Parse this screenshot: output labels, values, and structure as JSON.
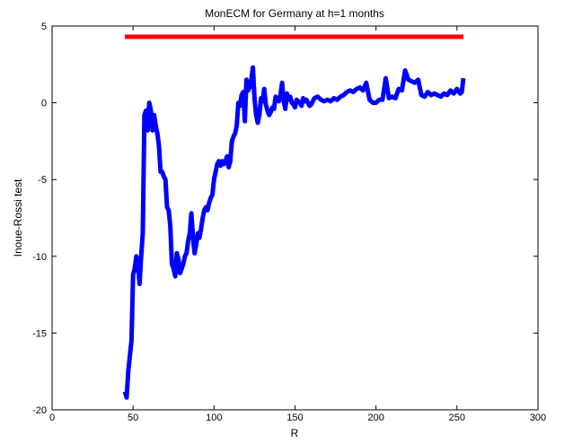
{
  "chart_data": {
    "type": "line",
    "title": "MonECM for Germany at h=1 months",
    "xlabel": "R",
    "ylabel": "Inoue-Rossi test",
    "xlim": [
      0,
      300
    ],
    "ylim": [
      -20,
      5
    ],
    "xticks": [
      0,
      50,
      100,
      150,
      200,
      250,
      300
    ],
    "yticks": [
      -20,
      -15,
      -10,
      -5,
      0,
      5
    ],
    "xtick_labels": [
      "0",
      "50",
      "100",
      "150",
      "200",
      "250",
      "300"
    ],
    "ytick_labels": [
      "-20",
      "-15",
      "-10",
      "-5",
      "0",
      "5"
    ],
    "grid": false,
    "legend": "none",
    "series": [
      {
        "color": "#0000ff",
        "x": [
          45,
          46,
          47,
          48,
          49,
          50,
          51,
          52,
          53,
          54,
          55,
          56,
          57,
          58,
          59,
          60,
          61,
          62,
          63,
          64,
          65,
          66,
          67,
          68,
          69,
          70,
          71,
          72,
          73,
          74,
          75,
          76,
          77,
          78,
          79,
          80,
          81,
          82,
          83,
          84,
          85,
          86,
          87,
          88,
          89,
          90,
          91,
          92,
          93,
          94,
          95,
          96,
          97,
          98,
          99,
          100,
          101,
          102,
          103,
          104,
          105,
          106,
          107,
          108,
          109,
          110,
          111,
          112,
          113,
          114,
          115,
          116,
          117,
          118,
          119,
          120,
          121,
          122,
          123,
          124,
          125,
          126,
          127,
          128,
          129,
          130,
          131,
          132,
          133,
          134,
          135,
          136,
          137,
          138,
          139,
          140,
          141,
          142,
          143,
          144,
          145,
          146,
          147,
          148,
          149,
          150,
          151,
          152,
          153,
          154,
          155,
          156,
          157,
          158,
          159,
          160,
          162,
          164,
          166,
          168,
          170,
          172,
          174,
          176,
          178,
          180,
          182,
          184,
          186,
          188,
          190,
          192,
          194,
          196,
          198,
          200,
          202,
          204,
          206,
          208,
          210,
          212,
          214,
          216,
          218,
          220,
          222,
          224,
          226,
          228,
          230,
          232,
          234,
          236,
          238,
          240,
          242,
          244,
          246,
          248,
          250,
          252,
          253,
          254
        ],
        "y": [
          -18.8,
          -19.2,
          -17.5,
          -16.5,
          -15.5,
          -11.2,
          -10.8,
          -10.0,
          -10.5,
          -11.8,
          -10.0,
          -8.5,
          -0.8,
          -0.5,
          -1.8,
          0.0,
          -0.5,
          -1.8,
          -0.8,
          -1.5,
          -2.0,
          -2.8,
          -4.5,
          -4.5,
          -4.8,
          -5.0,
          -6.8,
          -7.0,
          -8.0,
          -10.5,
          -10.8,
          -11.3,
          -9.8,
          -10.2,
          -11.1,
          -10.8,
          -10.5,
          -10.0,
          -9.8,
          -9.0,
          -8.5,
          -7.2,
          -8.8,
          -9.8,
          -9.2,
          -8.5,
          -8.8,
          -8.2,
          -7.5,
          -7.0,
          -6.8,
          -7.0,
          -6.5,
          -6.2,
          -6.0,
          -5.0,
          -4.5,
          -4.0,
          -3.8,
          -4.1,
          -3.8,
          -4.0,
          -3.8,
          -3.5,
          -4.2,
          -3.8,
          -2.5,
          -2.2,
          -2.0,
          -1.5,
          0.0,
          -0.2,
          0.5,
          0.7,
          -1.2,
          1.5,
          0.8,
          1.0,
          1.5,
          2.3,
          0.3,
          -0.8,
          -1.3,
          -0.8,
          0.3,
          0.1,
          0.9,
          -0.1,
          -0.5,
          -0.8,
          -0.6,
          -0.3,
          -0.4,
          0.4,
          0.2,
          0.1,
          0.5,
          1.3,
          0.1,
          -0.4,
          0.6,
          0.2,
          0.4,
          0.0,
          -0.1,
          -0.3,
          0.2,
          0.1,
          0.0,
          -0.2,
          0.3,
          0.1,
          0.2,
          0.0,
          -0.2,
          -0.1,
          0.3,
          0.4,
          0.2,
          0.1,
          0.2,
          0.1,
          0.3,
          0.2,
          0.4,
          0.5,
          0.7,
          0.8,
          0.7,
          0.9,
          1.0,
          0.8,
          1.3,
          0.2,
          0.0,
          0.0,
          0.2,
          0.2,
          1.6,
          0.3,
          0.4,
          0.3,
          0.9,
          0.8,
          2.1,
          1.5,
          1.4,
          1.3,
          1.5,
          0.5,
          0.4,
          0.7,
          0.5,
          0.6,
          0.5,
          0.4,
          0.6,
          0.5,
          0.8,
          0.6,
          0.9,
          0.6,
          0.7,
          1.6
        ]
      },
      {
        "color": "#ff0000",
        "x": [
          45,
          254
        ],
        "y": [
          4.3,
          4.3
        ]
      }
    ]
  }
}
